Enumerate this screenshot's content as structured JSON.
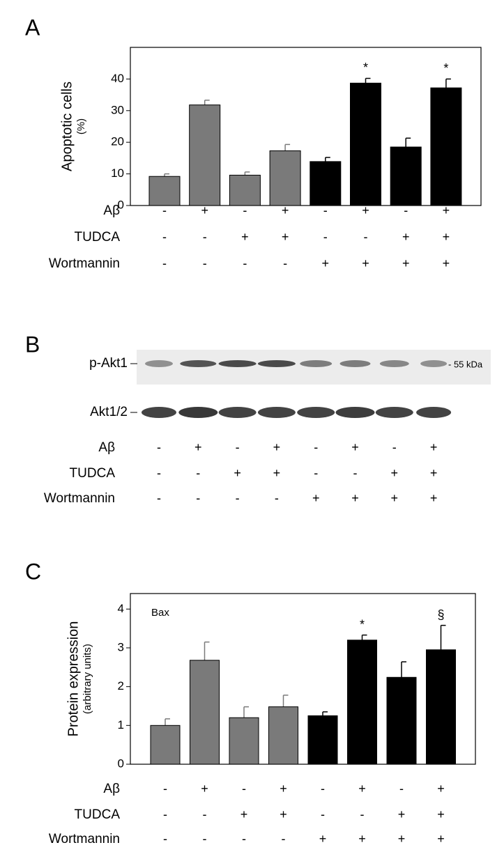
{
  "chart_data": [
    {
      "type": "bar",
      "panel_label": "A",
      "ylabel": "Apoptotic cells",
      "ylabel_unit": "(%)",
      "values": [
        9.2,
        31.8,
        9.6,
        17.3,
        13.9,
        38.7,
        18.5,
        37.2
      ],
      "errors": [
        0.8,
        1.5,
        1.0,
        2.0,
        1.3,
        1.5,
        2.8,
        2.8
      ],
      "colors": [
        "#7a7a7a",
        "#7a7a7a",
        "#7a7a7a",
        "#7a7a7a",
        "#000000",
        "#000000",
        "#000000",
        "#000000"
      ],
      "annotations": [
        null,
        null,
        null,
        null,
        null,
        "*",
        null,
        "*"
      ],
      "ylim": [
        0,
        50
      ],
      "yticks": [
        0,
        10,
        20,
        30,
        40
      ],
      "conditions": [
        {
          "name": "Aβ",
          "values": [
            "-",
            "+",
            "-",
            "+",
            "-",
            "+",
            "-",
            "+"
          ]
        },
        {
          "name": "TUDCA",
          "values": [
            "-",
            "-",
            "+",
            "+",
            "-",
            "-",
            "+",
            "+"
          ]
        },
        {
          "name": "Wortmannin",
          "values": [
            "-",
            "-",
            "-",
            "-",
            "+",
            "+",
            "+",
            "+"
          ]
        }
      ]
    },
    {
      "type": "bar",
      "panel_label": "C",
      "ylabel": "Protein expression",
      "ylabel_unit": "(arbitrary units)",
      "inner_label": "Bax",
      "values": [
        1.0,
        2.68,
        1.2,
        1.48,
        1.25,
        3.2,
        2.24,
        2.95
      ],
      "errors": [
        0.17,
        0.47,
        0.28,
        0.3,
        0.1,
        0.13,
        0.4,
        0.63
      ],
      "colors": [
        "#7a7a7a",
        "#7a7a7a",
        "#7a7a7a",
        "#7a7a7a",
        "#000000",
        "#000000",
        "#000000",
        "#000000"
      ],
      "annotations": [
        null,
        null,
        null,
        null,
        null,
        "*",
        null,
        "§"
      ],
      "ylim": [
        0,
        4.4
      ],
      "yticks": [
        0,
        1,
        2,
        3,
        4
      ],
      "conditions": [
        {
          "name": "Aβ",
          "values": [
            "-",
            "+",
            "-",
            "+",
            "-",
            "+",
            "-",
            "+"
          ]
        },
        {
          "name": "TUDCA",
          "values": [
            "-",
            "-",
            "+",
            "+",
            "-",
            "-",
            "+",
            "+"
          ]
        },
        {
          "name": "Wortmannin",
          "values": [
            "-",
            "-",
            "-",
            "-",
            "+",
            "+",
            "+",
            "+"
          ]
        }
      ]
    }
  ],
  "blot": {
    "panel_label": "B",
    "rows": [
      {
        "label": "p-Akt1"
      },
      {
        "label": "Akt1/2"
      }
    ],
    "marker": "- 55 kDa",
    "conditions": [
      {
        "name": "Aβ",
        "values": [
          "-",
          "+",
          "-",
          "+",
          "-",
          "+",
          "-",
          "+"
        ]
      },
      {
        "name": "TUDCA",
        "values": [
          "-",
          "-",
          "+",
          "+",
          "-",
          "-",
          "+",
          "+"
        ]
      },
      {
        "name": "Wortmannin",
        "values": [
          "-",
          "-",
          "-",
          "-",
          "+",
          "+",
          "+",
          "+"
        ]
      }
    ]
  }
}
